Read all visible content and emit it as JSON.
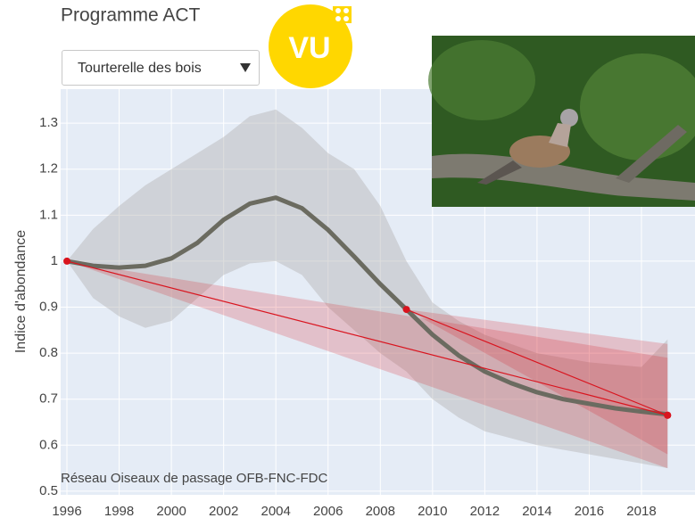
{
  "title": "Programme ACT",
  "dropdown": {
    "selected": "Tourterelle des bois"
  },
  "badge": "VU",
  "chart_data": {
    "type": "line",
    "ylabel": "Indice d'abondance",
    "annotation": "Réseau Oiseaux de passage OFB-FNC-FDC",
    "xlim": [
      1995.76,
      2020.05
    ],
    "ylim": [
      0.492,
      1.374
    ],
    "xticks": [
      1996,
      1998,
      2000,
      2002,
      2004,
      2006,
      2008,
      2010,
      2012,
      2014,
      2016,
      2018
    ],
    "yticks": [
      0.5,
      0.6,
      0.7,
      0.8,
      0.9,
      1,
      1.1,
      1.2,
      1.3
    ],
    "grid": true,
    "series": [
      {
        "color": "#6b6b60",
        "band_color": "#b4b4b4",
        "x": [
          1996,
          1997,
          1998,
          1999,
          2000,
          2001,
          2002,
          2003,
          2004,
          2005,
          2006,
          2007,
          2008,
          2009,
          2010,
          2011,
          2012,
          2013,
          2014,
          2015,
          2016,
          2017,
          2018,
          2019
        ],
        "values": [
          1.0,
          0.99,
          0.986,
          0.99,
          1.006,
          1.04,
          1.09,
          1.125,
          1.138,
          1.115,
          1.068,
          1.01,
          0.95,
          0.895,
          0.84,
          0.795,
          0.76,
          0.735,
          0.715,
          0.7,
          0.69,
          0.68,
          0.673,
          0.667
        ],
        "upper": [
          1.0,
          1.07,
          1.12,
          1.165,
          1.2,
          1.235,
          1.27,
          1.315,
          1.33,
          1.29,
          1.235,
          1.2,
          1.12,
          1.0,
          0.91,
          0.87,
          0.84,
          0.82,
          0.8,
          0.79,
          0.78,
          0.775,
          0.77,
          0.83
        ],
        "lower": [
          1.0,
          0.92,
          0.88,
          0.855,
          0.87,
          0.92,
          0.97,
          0.995,
          1.0,
          0.97,
          0.9,
          0.85,
          0.8,
          0.76,
          0.7,
          0.66,
          0.63,
          0.615,
          0.6,
          0.59,
          0.58,
          0.57,
          0.56,
          0.55
        ]
      }
    ],
    "trends": [
      {
        "color": "#d9141e",
        "x": [
          1996,
          2019
        ],
        "values": [
          1.0,
          0.665
        ],
        "upper": [
          1.0,
          0.79
        ],
        "lower": [
          1.0,
          0.55
        ]
      },
      {
        "color": "#d9141e",
        "x": [
          2009,
          2019
        ],
        "values": [
          0.895,
          0.665
        ],
        "upper": [
          0.895,
          0.82
        ],
        "lower": [
          0.895,
          0.58
        ]
      }
    ]
  }
}
